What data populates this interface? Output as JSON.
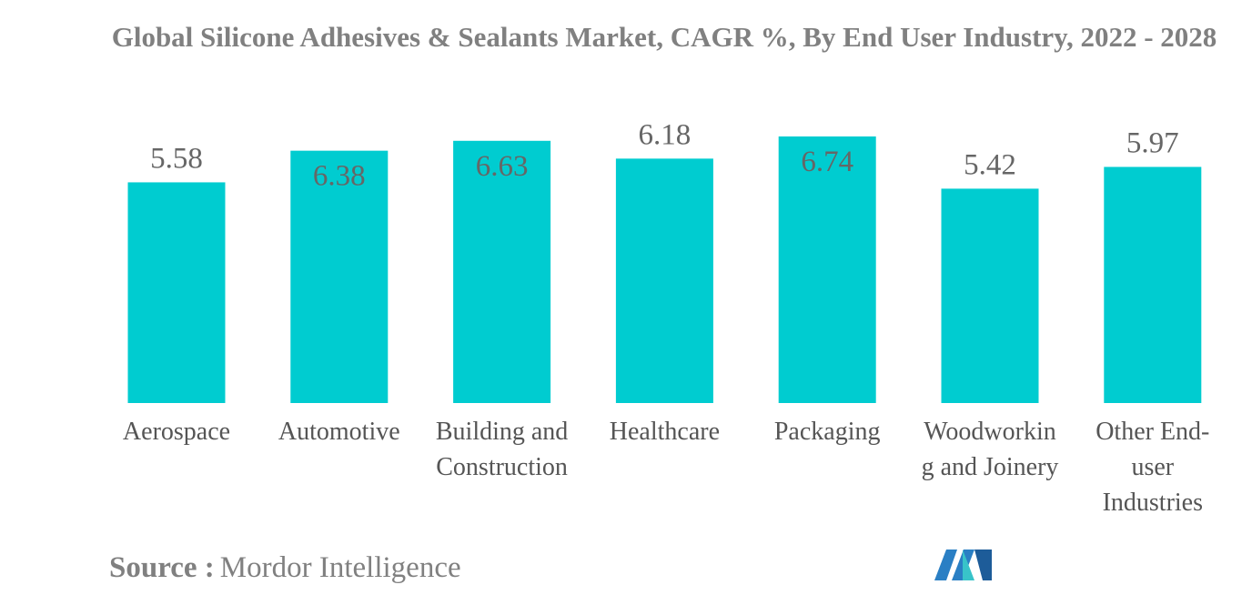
{
  "chart_data": {
    "type": "bar",
    "title": "Global Silicone Adhesives & Sealants Market, CAGR %, By End User Industry, 2022 - 2028",
    "categories": [
      "Aerospace",
      "Automotive",
      "Building and Construction",
      "Healthcare",
      "Packaging",
      "Woodworking and Joinery",
      "Other End-user Industries"
    ],
    "values": [
      5.58,
      6.38,
      6.63,
      6.18,
      6.74,
      5.42,
      5.97
    ],
    "color": "#00ccd0",
    "source_label": "Source :",
    "source": "Mordor Intelligence"
  }
}
